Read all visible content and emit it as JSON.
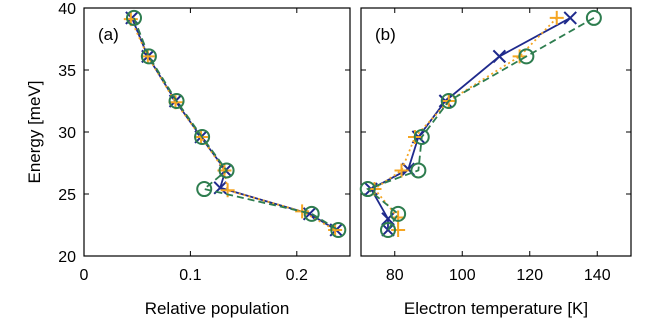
{
  "chart_data": [
    {
      "type": "line",
      "panel_label": "(a)",
      "xlabel": "Relative population",
      "ylabel": "Energy [meV]",
      "xlim": [
        0,
        0.25
      ],
      "ylim": [
        20,
        40
      ],
      "xticks": [
        0,
        0.1,
        0.2
      ],
      "xtick_labels": [
        "0",
        "0.1",
        "0.2"
      ],
      "yticks": [
        20,
        25,
        30,
        35,
        40
      ],
      "ytick_labels": [
        "20",
        "25",
        "30",
        "35",
        "40"
      ],
      "grid": false,
      "series": [
        {
          "marker": "x",
          "line_style": "solid",
          "color": "#1f2a8c",
          "x": [
            0.045,
            0.06,
            0.086,
            0.11,
            0.133,
            0.128,
            0.212,
            0.237
          ],
          "y": [
            39.2,
            36.1,
            32.5,
            29.6,
            26.9,
            25.5,
            23.4,
            22.1
          ]
        },
        {
          "marker": "+",
          "line_style": "dotted",
          "color": "#f5a623",
          "x": [
            0.044,
            0.06,
            0.086,
            0.11,
            0.132,
            0.135,
            0.205,
            0.236
          ],
          "y": [
            39.1,
            36.1,
            32.4,
            29.6,
            26.9,
            25.3,
            23.6,
            22.1
          ]
        },
        {
          "marker": "o",
          "line_style": "dashed",
          "color": "#2e7d4f",
          "x": [
            0.047,
            0.061,
            0.087,
            0.111,
            0.134,
            0.113,
            0.214,
            0.239
          ],
          "y": [
            39.2,
            36.1,
            32.5,
            29.6,
            26.9,
            25.4,
            23.4,
            22.1
          ]
        }
      ]
    },
    {
      "type": "line",
      "panel_label": "(b)",
      "xlabel": "Electron temperature [K]",
      "ylabel": "",
      "xlim": [
        70,
        150
      ],
      "ylim": [
        20,
        40
      ],
      "xticks": [
        80,
        100,
        120,
        140
      ],
      "xtick_labels": [
        "80",
        "100",
        "120",
        "140"
      ],
      "yticks": [
        20,
        25,
        30,
        35,
        40
      ],
      "ytick_labels": [
        "",
        "",
        "",
        "",
        ""
      ],
      "grid": false,
      "series": [
        {
          "marker": "x",
          "line_style": "solid",
          "color": "#1f2a8c",
          "x": [
            132,
            111,
            95,
            87,
            84,
            73,
            78,
            78
          ],
          "y": [
            39.2,
            36.1,
            32.5,
            29.6,
            27.0,
            25.4,
            23.0,
            22.1
          ]
        },
        {
          "marker": "+",
          "line_style": "dotted",
          "color": "#f5a623",
          "x": [
            128,
            117,
            96,
            86,
            82,
            74,
            81,
            81
          ],
          "y": [
            39.2,
            36.1,
            32.5,
            29.6,
            26.9,
            25.4,
            23.1,
            22.1
          ]
        },
        {
          "marker": "o",
          "line_style": "dashed",
          "color": "#2e7d4f",
          "x": [
            139,
            119,
            96,
            88,
            87,
            72,
            81,
            78
          ],
          "y": [
            39.2,
            36.1,
            32.5,
            29.6,
            26.9,
            25.4,
            23.4,
            22.1
          ]
        }
      ]
    }
  ]
}
